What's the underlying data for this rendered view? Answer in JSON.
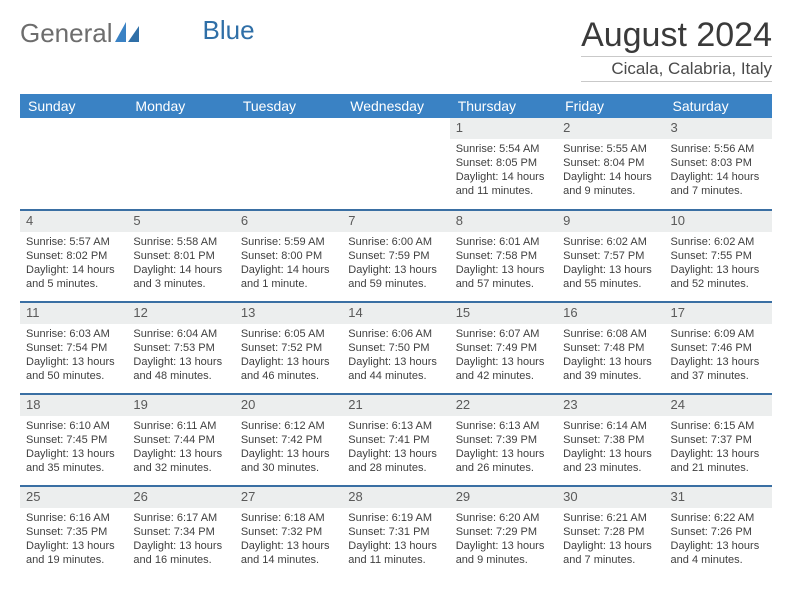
{
  "brand": {
    "part1": "General",
    "part2": "Blue"
  },
  "title": "August 2024",
  "location": "Cicala, Calabria, Italy",
  "colors": {
    "header_bg": "#3a82c4",
    "row_border": "#3a6fa3",
    "daynum_bg": "#eceeee",
    "text": "#3f3f3f",
    "logo_gray": "#6d6d6d",
    "logo_blue": "#2f6fa7"
  },
  "weekdays": [
    "Sunday",
    "Monday",
    "Tuesday",
    "Wednesday",
    "Thursday",
    "Friday",
    "Saturday"
  ],
  "grid": [
    [
      null,
      null,
      null,
      null,
      {
        "n": "1",
        "sr": "5:54 AM",
        "ss": "8:05 PM",
        "dl": "14 hours and 11 minutes."
      },
      {
        "n": "2",
        "sr": "5:55 AM",
        "ss": "8:04 PM",
        "dl": "14 hours and 9 minutes."
      },
      {
        "n": "3",
        "sr": "5:56 AM",
        "ss": "8:03 PM",
        "dl": "14 hours and 7 minutes."
      }
    ],
    [
      {
        "n": "4",
        "sr": "5:57 AM",
        "ss": "8:02 PM",
        "dl": "14 hours and 5 minutes."
      },
      {
        "n": "5",
        "sr": "5:58 AM",
        "ss": "8:01 PM",
        "dl": "14 hours and 3 minutes."
      },
      {
        "n": "6",
        "sr": "5:59 AM",
        "ss": "8:00 PM",
        "dl": "14 hours and 1 minute."
      },
      {
        "n": "7",
        "sr": "6:00 AM",
        "ss": "7:59 PM",
        "dl": "13 hours and 59 minutes."
      },
      {
        "n": "8",
        "sr": "6:01 AM",
        "ss": "7:58 PM",
        "dl": "13 hours and 57 minutes."
      },
      {
        "n": "9",
        "sr": "6:02 AM",
        "ss": "7:57 PM",
        "dl": "13 hours and 55 minutes."
      },
      {
        "n": "10",
        "sr": "6:02 AM",
        "ss": "7:55 PM",
        "dl": "13 hours and 52 minutes."
      }
    ],
    [
      {
        "n": "11",
        "sr": "6:03 AM",
        "ss": "7:54 PM",
        "dl": "13 hours and 50 minutes."
      },
      {
        "n": "12",
        "sr": "6:04 AM",
        "ss": "7:53 PM",
        "dl": "13 hours and 48 minutes."
      },
      {
        "n": "13",
        "sr": "6:05 AM",
        "ss": "7:52 PM",
        "dl": "13 hours and 46 minutes."
      },
      {
        "n": "14",
        "sr": "6:06 AM",
        "ss": "7:50 PM",
        "dl": "13 hours and 44 minutes."
      },
      {
        "n": "15",
        "sr": "6:07 AM",
        "ss": "7:49 PM",
        "dl": "13 hours and 42 minutes."
      },
      {
        "n": "16",
        "sr": "6:08 AM",
        "ss": "7:48 PM",
        "dl": "13 hours and 39 minutes."
      },
      {
        "n": "17",
        "sr": "6:09 AM",
        "ss": "7:46 PM",
        "dl": "13 hours and 37 minutes."
      }
    ],
    [
      {
        "n": "18",
        "sr": "6:10 AM",
        "ss": "7:45 PM",
        "dl": "13 hours and 35 minutes."
      },
      {
        "n": "19",
        "sr": "6:11 AM",
        "ss": "7:44 PM",
        "dl": "13 hours and 32 minutes."
      },
      {
        "n": "20",
        "sr": "6:12 AM",
        "ss": "7:42 PM",
        "dl": "13 hours and 30 minutes."
      },
      {
        "n": "21",
        "sr": "6:13 AM",
        "ss": "7:41 PM",
        "dl": "13 hours and 28 minutes."
      },
      {
        "n": "22",
        "sr": "6:13 AM",
        "ss": "7:39 PM",
        "dl": "13 hours and 26 minutes."
      },
      {
        "n": "23",
        "sr": "6:14 AM",
        "ss": "7:38 PM",
        "dl": "13 hours and 23 minutes."
      },
      {
        "n": "24",
        "sr": "6:15 AM",
        "ss": "7:37 PM",
        "dl": "13 hours and 21 minutes."
      }
    ],
    [
      {
        "n": "25",
        "sr": "6:16 AM",
        "ss": "7:35 PM",
        "dl": "13 hours and 19 minutes."
      },
      {
        "n": "26",
        "sr": "6:17 AM",
        "ss": "7:34 PM",
        "dl": "13 hours and 16 minutes."
      },
      {
        "n": "27",
        "sr": "6:18 AM",
        "ss": "7:32 PM",
        "dl": "13 hours and 14 minutes."
      },
      {
        "n": "28",
        "sr": "6:19 AM",
        "ss": "7:31 PM",
        "dl": "13 hours and 11 minutes."
      },
      {
        "n": "29",
        "sr": "6:20 AM",
        "ss": "7:29 PM",
        "dl": "13 hours and 9 minutes."
      },
      {
        "n": "30",
        "sr": "6:21 AM",
        "ss": "7:28 PM",
        "dl": "13 hours and 7 minutes."
      },
      {
        "n": "31",
        "sr": "6:22 AM",
        "ss": "7:26 PM",
        "dl": "13 hours and 4 minutes."
      }
    ]
  ],
  "labels": {
    "sunrise": "Sunrise:",
    "sunset": "Sunset:",
    "daylight": "Daylight:"
  }
}
